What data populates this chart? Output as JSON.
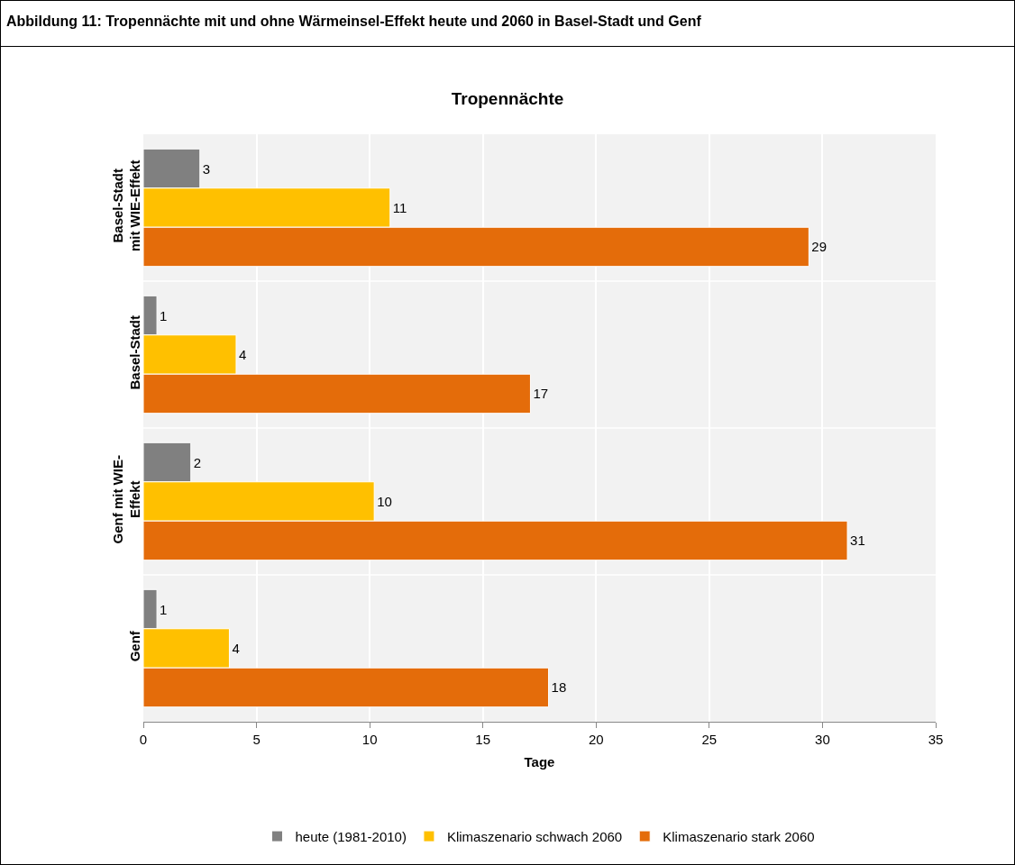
{
  "chart_data": {
    "type": "bar",
    "orientation": "horizontal",
    "title": "Tropennächte",
    "xlabel": "Tage",
    "annotations": [
      "Abbildung 11: Tropennächte mit und ohne Wärmeinsel-Effekt heute und 2060 in Basel-Stadt und Genf"
    ],
    "categories": [
      "Basel-Stadt\nmit WIE-Effekt",
      "Basel-Stadt",
      "Genf mit WIE-\nEffekt",
      "Genf"
    ],
    "series": [
      {
        "name": "heute (1981-2010)",
        "color": "#808080",
        "values": [
          2.5,
          0.6,
          2.1,
          0.6
        ],
        "value_labels": [
          "3",
          "1",
          "2",
          "1"
        ]
      },
      {
        "name": "Klimaszenario schwach 2060",
        "color": "#ffc000",
        "values": [
          10.9,
          4.1,
          10.2,
          3.8
        ],
        "value_labels": [
          "11",
          "4",
          "10",
          "4"
        ]
      },
      {
        "name": "Klimaszenario stark 2060",
        "color": "#e46c0a",
        "values": [
          29.4,
          17.1,
          31.1,
          17.9
        ],
        "value_labels": [
          "29",
          "17",
          "31",
          "18"
        ]
      }
    ],
    "xlim": [
      0,
      35
    ],
    "xticks": [
      0,
      5,
      10,
      15,
      20,
      25,
      30,
      35
    ],
    "grid": true,
    "legend": "bottom"
  }
}
